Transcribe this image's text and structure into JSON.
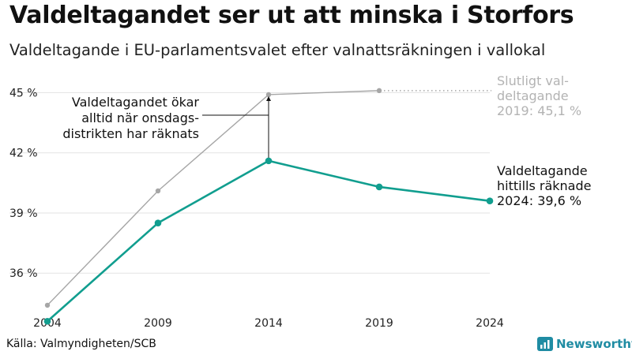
{
  "header": {
    "title": "Valdeltagandet ser ut att minska i Storfors",
    "subtitle": "Valdeltagande i EU-parlamentsvalet efter valnattsräkningen i vallokal"
  },
  "footer": {
    "source": "Källa: Valmyndigheten/SCB",
    "brand": "Newsworthy"
  },
  "chart_data": {
    "type": "line",
    "x": [
      2004,
      2009,
      2014,
      2019,
      2024
    ],
    "x_tick_labels": [
      "2004",
      "2009",
      "2014",
      "2019",
      "2024"
    ],
    "y_ticks": [
      36,
      39,
      42,
      45
    ],
    "y_tick_labels": [
      "36 %",
      "39 %",
      "42 %",
      "45 %"
    ],
    "ylim": [
      34.2,
      46
    ],
    "grid": true,
    "series": [
      {
        "key": "final",
        "color": "#a6a6a6",
        "values": [
          34.4,
          40.1,
          44.9,
          45.1,
          null
        ],
        "label": [
          "Slutligt val-",
          "deltagande",
          "2019: 45,1 %"
        ]
      },
      {
        "key": "election_night",
        "color": "#119e8f",
        "values": [
          33.6,
          38.5,
          41.6,
          40.3,
          39.6
        ],
        "label": [
          "Valdeltagande",
          "hittills räknade",
          "2024: 39,6 %"
        ]
      }
    ],
    "annotation": {
      "lines": [
        "Valdeltagandet ökar",
        "alltid när onsdags-",
        "distrikten har räknats"
      ]
    }
  }
}
